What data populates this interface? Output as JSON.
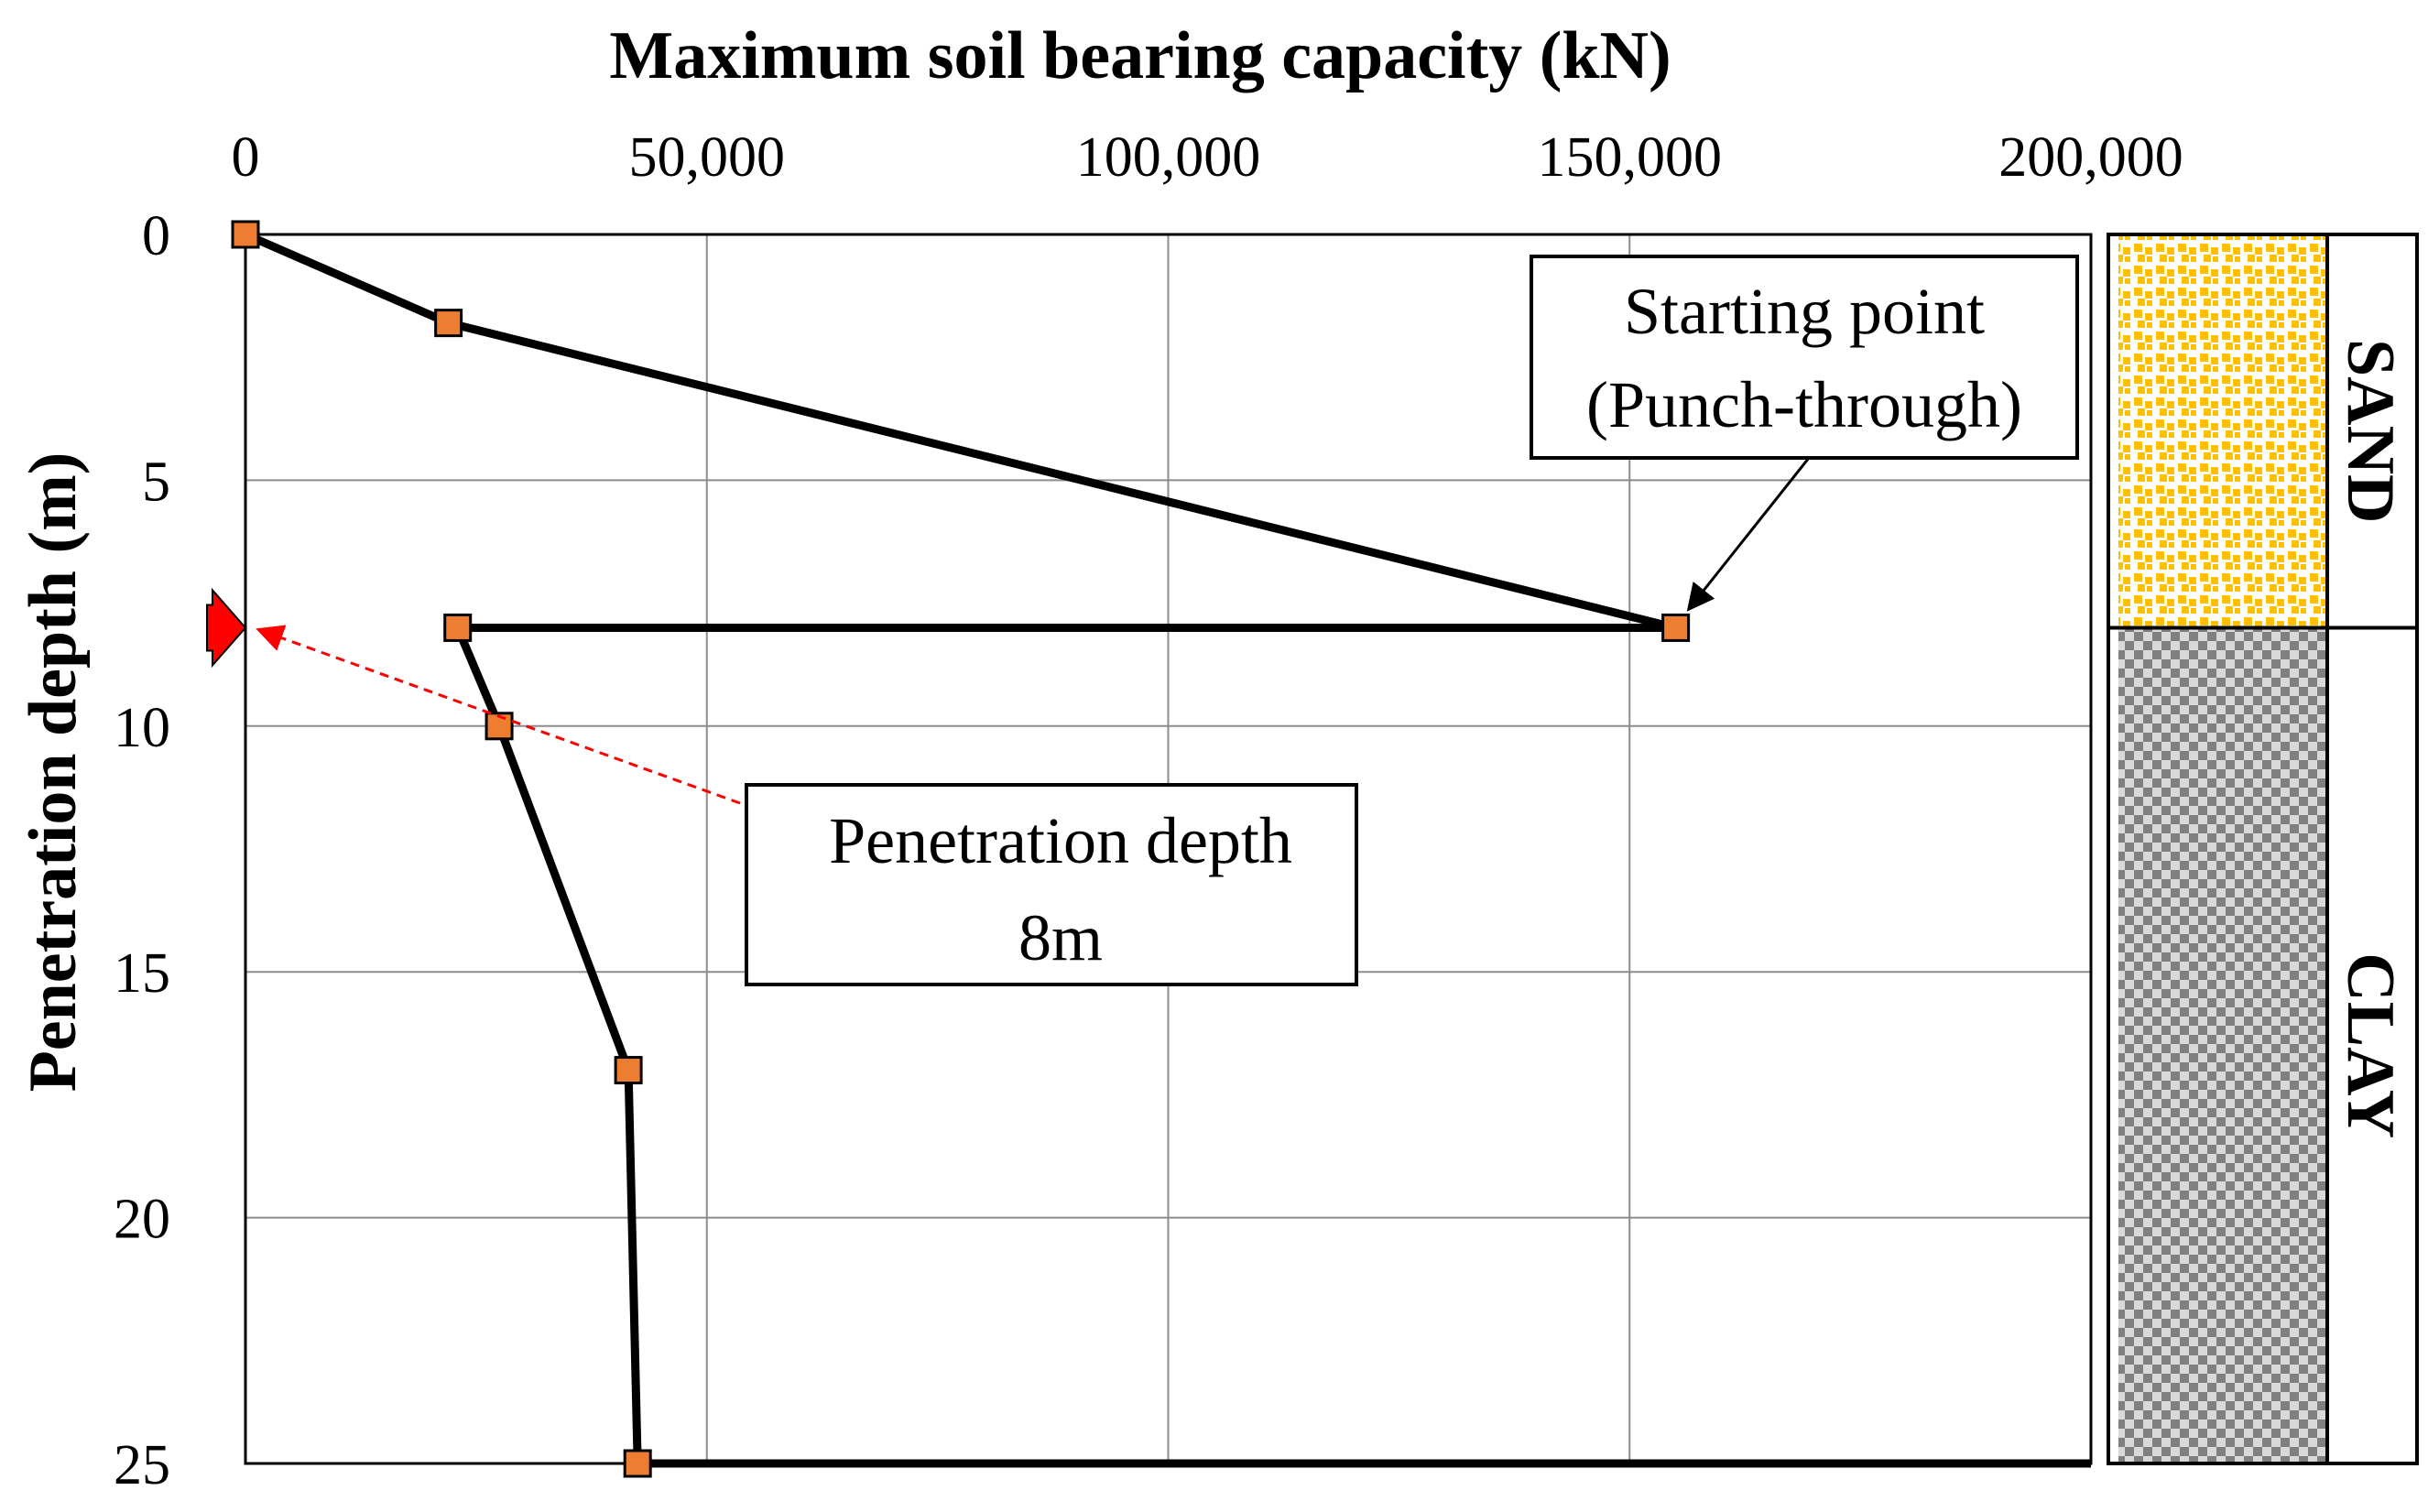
{
  "chart_data": {
    "type": "line",
    "xlabel": "Maximum soil bearing capacity (kN)",
    "ylabel": "Penetration depth (m)",
    "x_ticks": [
      "0",
      "50,000",
      "100,000",
      "150,000",
      "200,000"
    ],
    "y_ticks": [
      "0",
      "5",
      "10",
      "15",
      "20",
      "25"
    ],
    "xlim": [
      0,
      200000
    ],
    "ylim": [
      0,
      25
    ],
    "x_axis_position": "top",
    "y_axis_inverted": true,
    "grid": true,
    "series": [
      {
        "points": [
          {
            "x": 0,
            "y": 0
          },
          {
            "x": 22000,
            "y": 1.8
          },
          {
            "x": 155000,
            "y": 8
          },
          {
            "x": 23000,
            "y": 8
          },
          {
            "x": 27500,
            "y": 10
          },
          {
            "x": 41500,
            "y": 17
          },
          {
            "x": 42500,
            "y": 25
          },
          {
            "x": 200000,
            "y": 25
          }
        ],
        "marker_count": 7,
        "color": "#000000",
        "marker_color": "#ED7D31"
      }
    ],
    "annotations": [
      {
        "id": "start",
        "text": [
          "Starting point",
          "(Punch-through)"
        ],
        "points_to": {
          "x": 155000,
          "y": 8
        }
      },
      {
        "id": "depth",
        "text": [
          "Penetration depth",
          "8m"
        ],
        "points_to": {
          "x": 0,
          "y": 8
        },
        "arrow_color": "#FF0000",
        "arrow_style": "dashed"
      }
    ],
    "soil_column": [
      {
        "label": "SAND",
        "from_depth": 0,
        "to_depth": 8,
        "color": "#FFC000"
      },
      {
        "label": "CLAY",
        "from_depth": 8,
        "to_depth": 25,
        "color": "#808080"
      }
    ],
    "marker_arrow_color": "#FF0000"
  }
}
